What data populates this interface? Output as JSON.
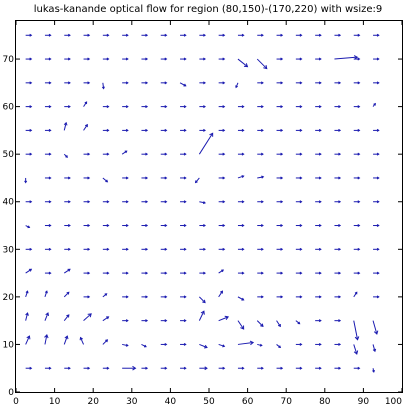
{
  "chart_data": {
    "type": "quiver",
    "title": "lukas-kanande optical flow for region (80,150)-(170,220) with wsize:9",
    "xlim": [
      0,
      100
    ],
    "ylim": [
      0,
      78
    ],
    "xticks": [
      0,
      10,
      20,
      30,
      40,
      50,
      60,
      70,
      80,
      90,
      100
    ],
    "yticks": [
      0,
      10,
      20,
      30,
      40,
      50,
      60,
      70
    ],
    "grid": false,
    "colors": {
      "arrow": "#1b1bb0",
      "axis": "#000000"
    },
    "grid_x": [
      2.5,
      7.5,
      12.5,
      17.5,
      22.5,
      27.5,
      32.5,
      37.5,
      42.5,
      47.5,
      52.5,
      57.5,
      62.5,
      67.5,
      72.5,
      77.5,
      82.5,
      87.5,
      92.5
    ],
    "grid_y": [
      5,
      10,
      15,
      20,
      25,
      30,
      35,
      40,
      45,
      50,
      55,
      60,
      65,
      70,
      75
    ],
    "default_vector": [
      1.5,
      0
    ],
    "vectors": [
      {
        "x": 17.5,
        "y": 60,
        "u": 0.8,
        "v": 1.2
      },
      {
        "x": 47.5,
        "y": 50,
        "u": 3.5,
        "v": 5.5
      },
      {
        "x": 57.5,
        "y": 70,
        "u": 2.5,
        "v": -2.0
      },
      {
        "x": 62.5,
        "y": 70,
        "u": 2.5,
        "v": -2.5
      },
      {
        "x": 82.5,
        "y": 70,
        "u": 6.0,
        "v": 0.5
      },
      {
        "x": 12.5,
        "y": 55,
        "u": 0.5,
        "v": 2.0
      },
      {
        "x": 17.5,
        "y": 55,
        "u": 1.0,
        "v": 1.5
      },
      {
        "x": 22.5,
        "y": 65,
        "u": 0.2,
        "v": -1.5
      },
      {
        "x": 42.5,
        "y": 65,
        "u": 1.5,
        "v": -0.8
      },
      {
        "x": 57.5,
        "y": 65,
        "u": -0.5,
        "v": -1.2
      },
      {
        "x": 92.5,
        "y": 60,
        "u": 0.6,
        "v": 0.8
      },
      {
        "x": 27.5,
        "y": 50,
        "u": 1.2,
        "v": 0.8
      },
      {
        "x": 12.5,
        "y": 50,
        "u": 0.8,
        "v": -0.8
      },
      {
        "x": 2.5,
        "y": 45,
        "u": 0.0,
        "v": -1.2
      },
      {
        "x": 22.5,
        "y": 45,
        "u": 1.2,
        "v": -1.0
      },
      {
        "x": 47.5,
        "y": 45,
        "u": -1.0,
        "v": -1.2
      },
      {
        "x": 57.5,
        "y": 45,
        "u": 1.5,
        "v": 0.5
      },
      {
        "x": 62.5,
        "y": 45,
        "u": 1.6,
        "v": 0.3
      },
      {
        "x": 2.5,
        "y": 35,
        "u": 1.0,
        "v": -0.5
      },
      {
        "x": 47.5,
        "y": 40,
        "u": 1.5,
        "v": -0.3
      },
      {
        "x": 2.5,
        "y": 25,
        "u": 1.5,
        "v": 1.0
      },
      {
        "x": 12.5,
        "y": 25,
        "u": 1.5,
        "v": 1.0
      },
      {
        "x": 52.5,
        "y": 25,
        "u": 1.2,
        "v": 0.8
      },
      {
        "x": 2.5,
        "y": 20,
        "u": 0.5,
        "v": 1.5
      },
      {
        "x": 7.5,
        "y": 20,
        "u": 0.5,
        "v": 1.5
      },
      {
        "x": 12.5,
        "y": 20,
        "u": 1.2,
        "v": 1.2
      },
      {
        "x": 22.5,
        "y": 20,
        "u": 1.0,
        "v": 0.8
      },
      {
        "x": 47.5,
        "y": 20,
        "u": 1.5,
        "v": -1.5
      },
      {
        "x": 52.5,
        "y": 20,
        "u": 1.0,
        "v": 1.5
      },
      {
        "x": 57.5,
        "y": 20,
        "u": 1.5,
        "v": -0.8
      },
      {
        "x": 87.5,
        "y": 20,
        "u": 0.8,
        "v": 1.2
      },
      {
        "x": 2.5,
        "y": 15,
        "u": 0.5,
        "v": 2.0
      },
      {
        "x": 7.5,
        "y": 15,
        "u": 0.8,
        "v": 2.0
      },
      {
        "x": 12.5,
        "y": 15,
        "u": 1.2,
        "v": 1.5
      },
      {
        "x": 17.5,
        "y": 15,
        "u": 2.0,
        "v": 1.8
      },
      {
        "x": 22.5,
        "y": 15,
        "u": 1.5,
        "v": 1.0
      },
      {
        "x": 47.5,
        "y": 15,
        "u": 1.2,
        "v": 2.5
      },
      {
        "x": 52.5,
        "y": 15,
        "u": 2.5,
        "v": 1.0
      },
      {
        "x": 57.5,
        "y": 15,
        "u": 1.5,
        "v": -2.2
      },
      {
        "x": 62.5,
        "y": 15,
        "u": 1.5,
        "v": -1.5
      },
      {
        "x": 67.5,
        "y": 15,
        "u": 1.0,
        "v": -1.5
      },
      {
        "x": 72.5,
        "y": 15,
        "u": 1.0,
        "v": -0.8
      },
      {
        "x": 87.5,
        "y": 15,
        "u": 1.0,
        "v": -5.0
      },
      {
        "x": 92.5,
        "y": 15,
        "u": 1.0,
        "v": -3.5
      },
      {
        "x": 2.5,
        "y": 10,
        "u": 1.0,
        "v": 2.2
      },
      {
        "x": 7.5,
        "y": 10,
        "u": 0.5,
        "v": 2.5
      },
      {
        "x": 12.5,
        "y": 10,
        "u": 0.8,
        "v": 2.2
      },
      {
        "x": 17.5,
        "y": 10,
        "u": -0.8,
        "v": 1.8
      },
      {
        "x": 22.5,
        "y": 10,
        "u": 1.2,
        "v": 1.2
      },
      {
        "x": 27.5,
        "y": 10,
        "u": 1.5,
        "v": -0.3
      },
      {
        "x": 32.5,
        "y": 10,
        "u": 1.2,
        "v": -0.6
      },
      {
        "x": 47.5,
        "y": 10,
        "u": 2.0,
        "v": -0.8
      },
      {
        "x": 52.5,
        "y": 10,
        "u": 1.5,
        "v": -0.5
      },
      {
        "x": 57.5,
        "y": 10,
        "u": 4.0,
        "v": 0.5
      },
      {
        "x": 62.5,
        "y": 10,
        "u": 1.2,
        "v": -0.3
      },
      {
        "x": 67.5,
        "y": 10,
        "u": 1.0,
        "v": -0.8
      },
      {
        "x": 87.5,
        "y": 10,
        "u": 0.8,
        "v": -2.5
      },
      {
        "x": 92.5,
        "y": 10,
        "u": 0.5,
        "v": -1.8
      },
      {
        "x": 27.5,
        "y": 5,
        "u": 3.5,
        "v": 0.0
      },
      {
        "x": 47.5,
        "y": 5,
        "u": 2.0,
        "v": 0.0
      },
      {
        "x": 92.5,
        "y": 5,
        "u": 0.2,
        "v": -1.0
      }
    ]
  }
}
